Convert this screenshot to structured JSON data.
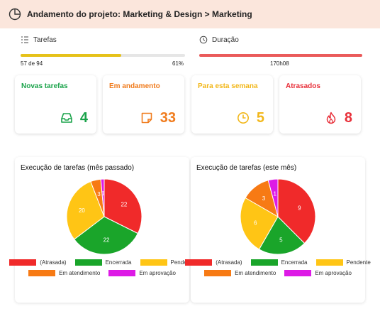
{
  "header": {
    "title": "Andamento do projeto: Marketing & Design > Marketing",
    "icon": "pie-chart-icon"
  },
  "tasks": {
    "label": "Tarefas",
    "icon": "list-icon",
    "progress_text": "57 de 94",
    "percent_text": "61%",
    "fraction": 0.61,
    "color": "#e6c21a"
  },
  "duration": {
    "label": "Duração",
    "icon": "clock-icon",
    "value_text": "170h08",
    "fraction": 1.0,
    "color": "#ea5b5b"
  },
  "cards": [
    {
      "label": "Novas tarefas",
      "count": "4",
      "color": "#1aa34a",
      "icon": "inbox-icon"
    },
    {
      "label": "Em andamento",
      "count": "33",
      "color": "#f07c1e",
      "icon": "note-icon"
    },
    {
      "label": "Para esta semana",
      "count": "5",
      "color": "#f2b71a",
      "icon": "clock-icon"
    },
    {
      "label": "Atrasados",
      "count": "8",
      "color": "#e8303a",
      "icon": "flame-icon"
    }
  ],
  "legend": [
    {
      "name": "(Atrasada)",
      "color": "#f02a2a"
    },
    {
      "name": "Encerrada",
      "color": "#1aa52a"
    },
    {
      "name": "Pendente",
      "color": "#ffc515"
    },
    {
      "name": "Em atendimento",
      "color": "#f77a14"
    },
    {
      "name": "Em aprovação",
      "color": "#dd1ae6"
    }
  ],
  "chart_data": [
    {
      "type": "pie",
      "title": "Execução de tarefas (mês passado)",
      "categories": [
        "(Atrasada)",
        "Encerrada",
        "Pendente",
        "Em atendimento",
        "Em aprovação"
      ],
      "values": [
        22,
        22,
        20,
        3,
        1
      ],
      "colors": [
        "#f02a2a",
        "#1aa52a",
        "#ffc515",
        "#f77a14",
        "#dd1ae6"
      ],
      "labels_shown": [
        "22",
        "22",
        "20",
        "3",
        "1"
      ]
    },
    {
      "type": "pie",
      "title": "Execução de tarefas (este mês)",
      "categories": [
        "(Atrasada)",
        "Encerrada",
        "Pendente",
        "Em atendimento",
        "Em aprovação"
      ],
      "values": [
        9,
        5,
        6,
        3,
        1
      ],
      "colors": [
        "#f02a2a",
        "#1aa52a",
        "#ffc515",
        "#f77a14",
        "#dd1ae6"
      ],
      "labels_shown": [
        "9",
        "5",
        "6",
        "3",
        "1"
      ]
    }
  ]
}
